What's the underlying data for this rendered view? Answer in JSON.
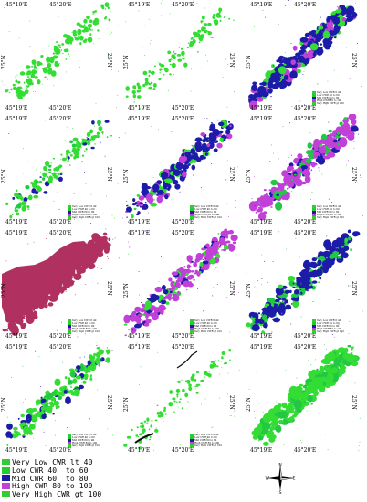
{
  "labels": {
    "lon_a": "45°19'E",
    "lon_b": "45°20'E",
    "lat": "25°N"
  },
  "legend": [
    {
      "label": "Very Low CWR lt 40",
      "color": "#33cc33"
    },
    {
      "label": "Low CWR 40  to 60",
      "color": "#22cc33"
    },
    {
      "label": "Mid CWR 60  to 80",
      "color": "#1a1aa6"
    },
    {
      "label": "High CWR 80 to 100",
      "color": "#c043d6"
    },
    {
      "label": "Very High CWR gt 100",
      "color": "#33cc33"
    }
  ],
  "colors": {
    "very_low": "#33dd33",
    "low": "#22c844",
    "mid": "#1c1ca8",
    "high": "#c040d8",
    "very_high_map": "#b03060"
  },
  "compass": {
    "n": "N",
    "s": "S",
    "e": "E",
    "w": "W"
  },
  "panels": [
    {
      "id": "p1",
      "dominant": "very_low",
      "extent": 0.35,
      "mixes": [
        "very_low"
      ]
    },
    {
      "id": "p2",
      "dominant": "very_low",
      "extent": 0.25,
      "mixes": [
        "very_low"
      ]
    },
    {
      "id": "p3",
      "dominant": "mid",
      "extent": 0.9,
      "mixes": [
        "very_low",
        "mid",
        "high"
      ]
    },
    {
      "id": "p4",
      "dominant": "very_low",
      "extent": 0.4,
      "mixes": [
        "very_low",
        "low",
        "mid"
      ]
    },
    {
      "id": "p5",
      "dominant": "mid",
      "extent": 0.75,
      "mixes": [
        "very_low",
        "mid",
        "high"
      ]
    },
    {
      "id": "p6",
      "dominant": "high",
      "extent": 0.9,
      "mixes": [
        "low",
        "mid",
        "high"
      ]
    },
    {
      "id": "p7",
      "dominant": "very_high_map",
      "extent": 1.0,
      "mixes": [
        "very_high_map"
      ]
    },
    {
      "id": "p8",
      "dominant": "high",
      "extent": 0.75,
      "mixes": [
        "very_low",
        "mid",
        "high"
      ]
    },
    {
      "id": "p9",
      "dominant": "mid",
      "extent": 0.9,
      "mixes": [
        "very_low",
        "low",
        "mid"
      ]
    },
    {
      "id": "p10",
      "dominant": "very_low",
      "extent": 0.55,
      "mixes": [
        "very_low",
        "low",
        "mid"
      ]
    },
    {
      "id": "p11",
      "dominant": "very_low",
      "extent": 0.15,
      "mixes": [
        "very_low"
      ]
    },
    {
      "id": "p12",
      "dominant": "very_low",
      "extent": 0.95,
      "mixes": [
        "very_low",
        "low"
      ]
    }
  ]
}
